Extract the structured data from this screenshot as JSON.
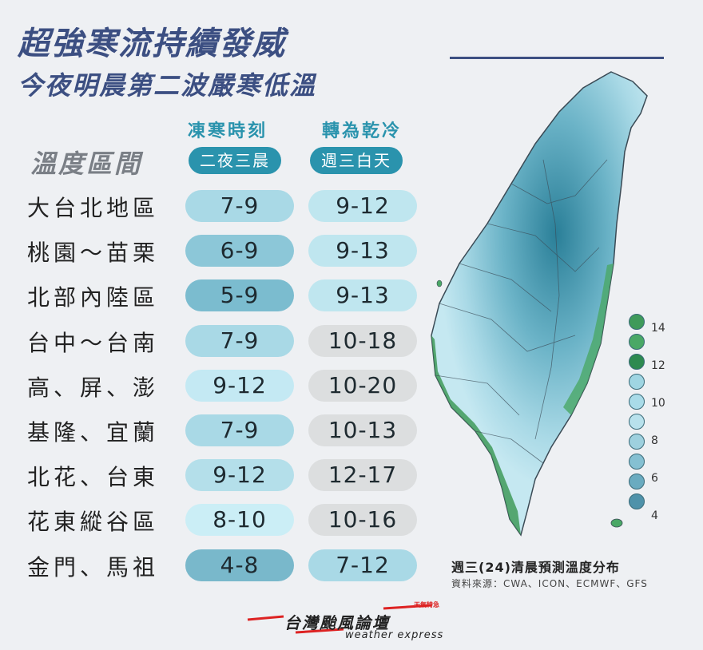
{
  "header": {
    "title_line1": "超強寒流持續發威",
    "title_line2": "今夜明晨第二波嚴寒低溫"
  },
  "table": {
    "range_label": "溫度區間",
    "col1": {
      "heading": "凍寒時刻",
      "sub": "二夜三晨"
    },
    "col2": {
      "heading": "轉為乾冷",
      "sub": "週三白天"
    },
    "rows": [
      {
        "region": "大台北地區",
        "night": "7-9",
        "day": "9-12",
        "night_color": "#a9d9e6",
        "day_color": "#bfe6ef"
      },
      {
        "region": "桃園～苗栗",
        "night": "6-9",
        "day": "9-13",
        "night_color": "#8cc7d8",
        "day_color": "#bfe6ef"
      },
      {
        "region": "北部內陸區",
        "night": "5-9",
        "day": "9-13",
        "night_color": "#7bbccf",
        "day_color": "#bfe6ef"
      },
      {
        "region": "台中～台南",
        "night": "7-9",
        "day": "10-18",
        "night_color": "#a9d9e6",
        "day_color": "#dcdedf"
      },
      {
        "region": "高、屏、澎",
        "night": "9-12",
        "day": "10-20",
        "night_color": "#c4e9f3",
        "day_color": "#dcdedf"
      },
      {
        "region": "基隆、宜蘭",
        "night": "7-9",
        "day": "10-13",
        "night_color": "#a9d9e6",
        "day_color": "#dcdedf"
      },
      {
        "region": "北花、台東",
        "night": "9-12",
        "day": "12-17",
        "night_color": "#b4dfea",
        "day_color": "#dcdedf"
      },
      {
        "region": "花東縱谷區",
        "night": "8-10",
        "day": "10-16",
        "night_color": "#cbeef6",
        "day_color": "#dcdedf"
      },
      {
        "region": "金門、馬祖",
        "night": "4-8",
        "day": "7-12",
        "night_color": "#79b8cb",
        "day_color": "#a9d9e6"
      }
    ]
  },
  "legend": {
    "labels": [
      "14",
      "12",
      "10",
      "8",
      "6",
      "4"
    ],
    "colors": [
      "#3f9a5a",
      "#4aa866",
      "#2e8a50",
      "#9fd5e2",
      "#a9dbe8",
      "#b8e1ec",
      "#9ed0de",
      "#85c0d2",
      "#6aabc0",
      "#4f92aa"
    ]
  },
  "map": {
    "caption": "週三(24)清晨預測溫度分布",
    "source": "資料來源：CWA、ICON、ECMWF、GFS"
  },
  "logo": {
    "name": "台灣颱風論壇",
    "sub": "weather express",
    "tag": "天氣特急"
  }
}
